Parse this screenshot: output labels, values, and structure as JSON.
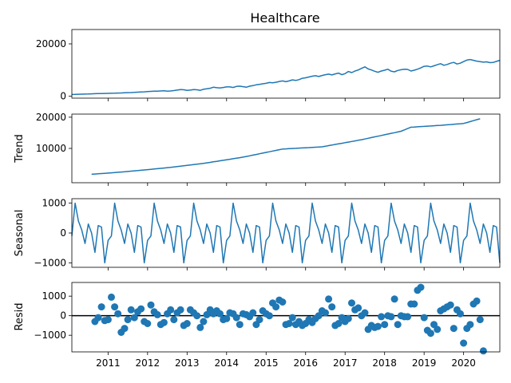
{
  "chart_data": [
    {
      "type": "line",
      "title": "Healthcare",
      "ylabel": "",
      "x_range": [
        "2010-02",
        "2020-12"
      ],
      "ylim": [
        -800,
        25500
      ],
      "yticks": [
        0,
        20000
      ],
      "color": "#1f77b4",
      "start": "2010-02",
      "values": [
        600,
        650,
        700,
        720,
        760,
        800,
        850,
        900,
        950,
        980,
        1000,
        1020,
        1060,
        1100,
        1150,
        1200,
        1250,
        1300,
        1350,
        1400,
        1500,
        1550,
        1620,
        1700,
        1800,
        1850,
        1900,
        1950,
        2000,
        1900,
        1950,
        2100,
        2300,
        2500,
        2400,
        2200,
        2300,
        2500,
        2400,
        2200,
        2600,
        2800,
        3000,
        3400,
        3200,
        3100,
        3300,
        3500,
        3500,
        3300,
        3700,
        3800,
        3600,
        3400,
        3800,
        4000,
        4300,
        4500,
        4700,
        4900,
        5200,
        5100,
        5300,
        5600,
        5800,
        5500,
        5800,
        6200,
        6000,
        6300,
        6800,
        7000,
        7300,
        7600,
        7800,
        7500,
        7900,
        8200,
        8400,
        8100,
        8500,
        8800,
        8200,
        8600,
        9400,
        9000,
        9600,
        10000,
        10600,
        11200,
        10400,
        10000,
        9500,
        9100,
        9600,
        9900,
        10300,
        9500,
        9300,
        9800,
        10100,
        10300,
        10200,
        9600,
        9900,
        10300,
        10800,
        11400,
        11500,
        11200,
        11600,
        12000,
        12400,
        11800,
        12100,
        12600,
        12900,
        12300,
        12600,
        13200,
        13800,
        14000,
        13700,
        13400,
        13200,
        13000,
        13100,
        12800,
        12900,
        13300,
        13700,
        14000,
        13600,
        14200,
        14800,
        15200,
        16000,
        16900,
        15600,
        15900,
        16300,
        16600,
        17000,
        17300,
        17100,
        17400,
        18100,
        18700,
        18500,
        16300,
        16100,
        16500,
        17200,
        17600,
        17400,
        17900,
        18100,
        18300,
        17400,
        17800,
        18500,
        17900,
        18300,
        17700,
        17300,
        17800,
        18400,
        17200,
        16800,
        17500,
        17900,
        19000,
        19800,
        19500,
        18800,
        17600,
        18900,
        19400,
        19200,
        20100,
        23000,
        23500,
        22000,
        19800
      ]
    },
    {
      "type": "line",
      "ylabel": "Trend",
      "x_range": [
        "2010-02",
        "2020-12"
      ],
      "ylim": [
        -1000,
        21000
      ],
      "yticks": [
        10000,
        20000
      ],
      "color": "#1f77b4",
      "start": "2010-08",
      "anchors": [
        [
          "2010-08",
          1700
        ],
        [
          "2011-06",
          2500
        ],
        [
          "2012-06",
          3700
        ],
        [
          "2013-06",
          5200
        ],
        [
          "2014-06",
          7200
        ],
        [
          "2015-06",
          9800
        ],
        [
          "2016-06",
          10500
        ],
        [
          "2017-06",
          12800
        ],
        [
          "2018-06",
          15500
        ],
        [
          "2018-09",
          16800
        ],
        [
          "2019-06",
          17400
        ],
        [
          "2020-01",
          18000
        ],
        [
          "2020-06",
          19500
        ]
      ]
    },
    {
      "type": "line",
      "ylabel": "Seasonal",
      "x_range": [
        "2010-02",
        "2020-12"
      ],
      "ylim": [
        -1150,
        1150
      ],
      "yticks": [
        -1000,
        0,
        1000
      ],
      "color": "#1f77b4",
      "start": "2010-01",
      "seasonal_pattern": [
        -250,
        -100,
        1000,
        400,
        100,
        -350,
        300,
        0,
        -650,
        250,
        200,
        -1000
      ]
    },
    {
      "type": "scatter",
      "ylabel": "Resid",
      "x_range": [
        "2010-02",
        "2020-12"
      ],
      "ylim": [
        -1850,
        1700
      ],
      "yticks": [
        -1000,
        0,
        1000
      ],
      "color": "#1f77b4",
      "zero_line": true,
      "points": [
        [
          "2010-09",
          -300
        ],
        [
          "2010-10",
          -100
        ],
        [
          "2010-11",
          450
        ],
        [
          "2010-12",
          -250
        ],
        [
          "2011-01",
          -200
        ],
        [
          "2011-02",
          950
        ],
        [
          "2011-03",
          450
        ],
        [
          "2011-04",
          100
        ],
        [
          "2011-05",
          -850
        ],
        [
          "2011-06",
          -650
        ],
        [
          "2011-07",
          -200
        ],
        [
          "2011-08",
          300
        ],
        [
          "2011-09",
          -100
        ],
        [
          "2011-10",
          200
        ],
        [
          "2011-11",
          350
        ],
        [
          "2011-12",
          -300
        ],
        [
          "2012-01",
          -400
        ],
        [
          "2012-02",
          550
        ],
        [
          "2012-03",
          200
        ],
        [
          "2012-04",
          50
        ],
        [
          "2012-05",
          -450
        ],
        [
          "2012-06",
          -350
        ],
        [
          "2012-07",
          100
        ],
        [
          "2012-08",
          300
        ],
        [
          "2012-09",
          -200
        ],
        [
          "2012-10",
          150
        ],
        [
          "2012-11",
          300
        ],
        [
          "2012-12",
          -500
        ],
        [
          "2013-01",
          -400
        ],
        [
          "2013-02",
          300
        ],
        [
          "2013-03",
          150
        ],
        [
          "2013-04",
          0
        ],
        [
          "2013-05",
          -600
        ],
        [
          "2013-06",
          -300
        ],
        [
          "2013-07",
          50
        ],
        [
          "2013-08",
          300
        ],
        [
          "2013-09",
          100
        ],
        [
          "2013-10",
          250
        ],
        [
          "2013-11",
          100
        ],
        [
          "2013-12",
          -200
        ],
        [
          "2014-01",
          -150
        ],
        [
          "2014-02",
          150
        ],
        [
          "2014-03",
          100
        ],
        [
          "2014-04",
          -100
        ],
        [
          "2014-05",
          -450
        ],
        [
          "2014-06",
          100
        ],
        [
          "2014-07",
          50
        ],
        [
          "2014-08",
          -50
        ],
        [
          "2014-09",
          150
        ],
        [
          "2014-10",
          -450
        ],
        [
          "2014-11",
          -200
        ],
        [
          "2014-12",
          250
        ],
        [
          "2015-01",
          100
        ],
        [
          "2015-02",
          0
        ],
        [
          "2015-03",
          650
        ],
        [
          "2015-04",
          450
        ],
        [
          "2015-05",
          800
        ],
        [
          "2015-06",
          700
        ],
        [
          "2015-07",
          -450
        ],
        [
          "2015-08",
          -400
        ],
        [
          "2015-09",
          -100
        ],
        [
          "2015-10",
          -450
        ],
        [
          "2015-11",
          -300
        ],
        [
          "2015-12",
          -500
        ],
        [
          "2016-01",
          -400
        ],
        [
          "2016-02",
          -200
        ],
        [
          "2016-03",
          -350
        ],
        [
          "2016-04",
          -150
        ],
        [
          "2016-05",
          0
        ],
        [
          "2016-06",
          250
        ],
        [
          "2016-07",
          150
        ],
        [
          "2016-08",
          850
        ],
        [
          "2016-09",
          450
        ],
        [
          "2016-10",
          -500
        ],
        [
          "2016-11",
          -400
        ],
        [
          "2016-12",
          -100
        ],
        [
          "2017-01",
          -300
        ],
        [
          "2017-02",
          -150
        ],
        [
          "2017-03",
          650
        ],
        [
          "2017-04",
          300
        ],
        [
          "2017-05",
          400
        ],
        [
          "2017-06",
          0
        ],
        [
          "2017-07",
          150
        ],
        [
          "2017-08",
          -700
        ],
        [
          "2017-09",
          -500
        ],
        [
          "2017-10",
          -600
        ],
        [
          "2017-11",
          -550
        ],
        [
          "2017-12",
          -50
        ],
        [
          "2018-01",
          -450
        ],
        [
          "2018-02",
          0
        ],
        [
          "2018-03",
          -50
        ],
        [
          "2018-04",
          850
        ],
        [
          "2018-05",
          -450
        ],
        [
          "2018-06",
          0
        ],
        [
          "2018-07",
          -50
        ],
        [
          "2018-08",
          -50
        ],
        [
          "2018-09",
          600
        ],
        [
          "2018-10",
          600
        ],
        [
          "2018-11",
          1300
        ],
        [
          "2018-12",
          1450
        ],
        [
          "2019-01",
          -100
        ],
        [
          "2019-02",
          -750
        ],
        [
          "2019-03",
          -900
        ],
        [
          "2019-04",
          -450
        ],
        [
          "2019-05",
          -700
        ],
        [
          "2019-06",
          250
        ],
        [
          "2019-07",
          350
        ],
        [
          "2019-08",
          450
        ],
        [
          "2019-09",
          550
        ],
        [
          "2019-10",
          -650
        ],
        [
          "2019-11",
          300
        ],
        [
          "2019-12",
          100
        ],
        [
          "2020-01",
          -1400
        ],
        [
          "2020-02",
          -650
        ],
        [
          "2020-03",
          -450
        ],
        [
          "2020-04",
          600
        ],
        [
          "2020-05",
          750
        ],
        [
          "2020-06",
          -200
        ],
        [
          "2020-07",
          -1800
        ]
      ]
    }
  ],
  "x_tick_labels": [
    "2011",
    "2012",
    "2013",
    "2014",
    "2015",
    "2016",
    "2017",
    "2018",
    "2019",
    "2020"
  ]
}
